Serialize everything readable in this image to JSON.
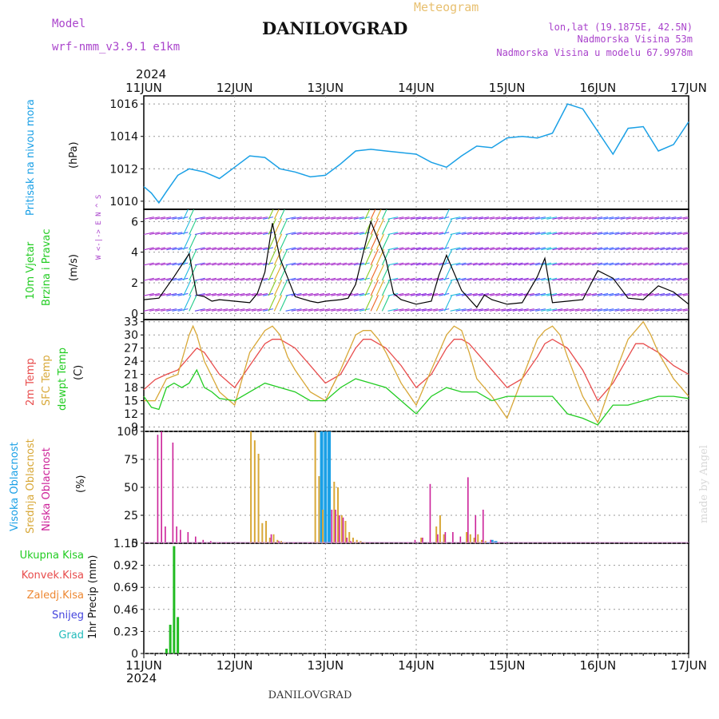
{
  "header": {
    "model_label": "Model",
    "model_name": "wrf-nmm_v3.9.1  e1km",
    "title": "DANILOVGRAD",
    "product": "Meteogram",
    "lonlat": "lon,lat (19.1875E, 42.5N)",
    "elevation": "Nadmorska Visina 53m",
    "model_elevation": "Nadmorska Visina u modelu 67.9978m",
    "footer": "DANILOVGRAD",
    "credit": "made by Angel"
  },
  "colors": {
    "pressure": "#1aa0e6",
    "wind_label": "#22cc22",
    "t2m": "#e84c4c",
    "sfc": "#d8a838",
    "dewpt": "#22cc22",
    "cloud_high": "#1aa0e6",
    "cloud_mid": "#d8a838",
    "cloud_low": "#cc2299",
    "precip": "#22bb22",
    "purple": "#aa44cc"
  },
  "time_axis": {
    "year": "2024",
    "ticks": [
      "11JUN",
      "12JUN",
      "13JUN",
      "14JUN",
      "15JUN",
      "16JUN",
      "17JUN"
    ]
  },
  "chart_data": [
    {
      "id": "pressure",
      "type": "line",
      "ylabel": "Pritisak na nivou mora",
      "unit": "(hPa)",
      "ylim": [
        1009.5,
        1016.5
      ],
      "yticks": [
        "1010",
        "1012",
        "1014",
        "1016"
      ],
      "series": [
        {
          "x": [
            0,
            2,
            4,
            6,
            9,
            12,
            16,
            20,
            24,
            28,
            32,
            36,
            40,
            44,
            48,
            52,
            56,
            60,
            64,
            68,
            72,
            76,
            80,
            84,
            88,
            92,
            96,
            100,
            104,
            108,
            112,
            116,
            120,
            124,
            128,
            132,
            136,
            140,
            144
          ],
          "values": [
            1010.9,
            1010.5,
            1009.9,
            1010.6,
            1011.6,
            1012.0,
            1011.8,
            1011.4,
            1012.1,
            1012.8,
            1012.7,
            1012.0,
            1011.8,
            1011.5,
            1011.6,
            1012.3,
            1013.1,
            1013.2,
            1013.1,
            1013.0,
            1012.9,
            1012.4,
            1012.1,
            1012.8,
            1013.4,
            1013.3,
            1013.9,
            1014.0,
            1013.9,
            1014.2,
            1016.0,
            1015.7,
            1014.3,
            1012.9,
            1014.5,
            1014.6,
            1013.1,
            1013.5,
            1014.9
          ]
        }
      ]
    },
    {
      "id": "wind",
      "type": "line",
      "ylabel": "10m Vjetar",
      "ylabel2": "Brzina i Pravac",
      "unit": "(m/s)",
      "compass": "W <-|-> E  N ^ S",
      "ylim": [
        -0.4,
        6.8
      ],
      "yticks": [
        "0",
        "2",
        "4",
        "6"
      ],
      "series": [
        {
          "x": [
            0,
            4,
            8,
            12,
            14,
            16,
            18,
            20,
            24,
            28,
            30,
            32,
            34,
            36,
            40,
            44,
            46,
            48,
            52,
            54,
            56,
            60,
            64,
            66,
            68,
            72,
            76,
            78,
            80,
            84,
            88,
            90,
            92,
            96,
            100,
            104,
            106,
            108,
            112,
            116,
            120,
            124,
            128,
            132,
            136,
            140,
            144
          ],
          "values": [
            0.9,
            1.0,
            2.4,
            3.9,
            1.2,
            1.1,
            0.8,
            0.9,
            0.8,
            0.7,
            1.3,
            2.7,
            5.9,
            3.6,
            1.1,
            0.8,
            0.7,
            0.8,
            0.9,
            1.0,
            1.9,
            6.0,
            3.5,
            1.3,
            0.9,
            0.6,
            0.8,
            2.5,
            3.8,
            1.5,
            0.4,
            1.2,
            0.9,
            0.6,
            0.7,
            2.4,
            3.6,
            0.7,
            0.8,
            0.9,
            2.8,
            2.3,
            1.0,
            0.9,
            1.8,
            1.4,
            0.6
          ]
        }
      ]
    },
    {
      "id": "temperature",
      "type": "line",
      "ylabels": [
        "2m Temp",
        "SFC Temp",
        "dewpt Temp"
      ],
      "unit": "(C)",
      "ylim": [
        8,
        33.5
      ],
      "yticks": [
        "9",
        "12",
        "15",
        "18",
        "21",
        "24",
        "27",
        "30",
        "33"
      ],
      "series": [
        {
          "name": "2m Temp",
          "x": [
            0,
            3,
            6,
            9,
            12,
            14,
            16,
            20,
            24,
            28,
            32,
            34,
            36,
            38,
            40,
            44,
            48,
            52,
            56,
            58,
            60,
            62,
            64,
            68,
            72,
            76,
            80,
            82,
            84,
            86,
            88,
            92,
            96,
            100,
            104,
            106,
            108,
            110,
            112,
            116,
            120,
            124,
            128,
            130,
            132,
            134,
            136,
            140,
            144
          ],
          "values": [
            17.5,
            19.8,
            21,
            22,
            25,
            27,
            26,
            21,
            18,
            23,
            28,
            29,
            29,
            28,
            27,
            23,
            19,
            21,
            27,
            29,
            29,
            28,
            27,
            23,
            18,
            21,
            27,
            29,
            29,
            28,
            26,
            22,
            18,
            20,
            25,
            28,
            29,
            28,
            27,
            22,
            15,
            19,
            25,
            28,
            28,
            27,
            26,
            23,
            21
          ]
        },
        {
          "name": "SFC Temp",
          "x": [
            0,
            3,
            6,
            9,
            12,
            13,
            14,
            16,
            20,
            24,
            28,
            32,
            34,
            35,
            36,
            38,
            40,
            44,
            48,
            52,
            56,
            58,
            60,
            62,
            64,
            68,
            72,
            76,
            80,
            82,
            84,
            86,
            88,
            92,
            96,
            100,
            104,
            106,
            108,
            110,
            112,
            116,
            120,
            124,
            128,
            130,
            132,
            134,
            136,
            140,
            144
          ],
          "values": [
            15,
            15,
            20,
            21,
            30,
            32,
            30,
            24,
            17,
            14,
            26,
            31,
            32,
            31,
            30,
            25,
            22,
            17,
            15,
            22,
            30,
            31,
            31,
            29,
            26,
            19,
            14,
            22,
            30,
            32,
            31,
            26,
            20,
            16,
            11,
            20,
            29,
            31,
            32,
            30,
            25,
            16,
            10,
            20,
            29,
            31,
            33,
            30,
            26,
            20,
            16
          ]
        },
        {
          "name": "dewpt Temp",
          "x": [
            0,
            2,
            4,
            6,
            8,
            10,
            12,
            14,
            16,
            18,
            20,
            24,
            28,
            32,
            36,
            40,
            44,
            48,
            52,
            56,
            60,
            64,
            68,
            72,
            76,
            80,
            84,
            88,
            92,
            96,
            100,
            104,
            108,
            112,
            116,
            120,
            124,
            128,
            132,
            136,
            140,
            144
          ],
          "values": [
            16,
            13.5,
            13,
            18,
            19,
            18,
            19,
            22,
            18,
            17,
            15.5,
            15,
            17,
            19,
            18,
            17,
            15,
            15,
            18,
            20,
            19,
            18,
            15,
            12,
            16,
            18,
            17,
            17,
            15,
            16,
            16,
            16,
            16,
            12,
            11,
            9.5,
            14,
            14,
            15,
            16,
            16,
            15.5
          ]
        }
      ]
    },
    {
      "id": "clouds",
      "type": "bar",
      "ylabels": [
        "Visoka Oblacnost",
        "Srednja Oblacnost",
        "Niska Oblacnost"
      ],
      "unit": "(%)",
      "ylim": [
        0,
        100
      ],
      "yticks": [
        "0",
        "25",
        "50",
        "75",
        "100"
      ],
      "series": [
        {
          "name": "Visoka Oblacnost",
          "x": [
            47,
            48,
            49,
            90,
            91,
            92,
            93
          ],
          "values": [
            100,
            100,
            100,
            1,
            1,
            3,
            2
          ]
        },
        {
          "name": "Srednja Oblacnost",
          "x": [
            28,
            29,
            30,
            31,
            32,
            33,
            34,
            35,
            36,
            37,
            45,
            46,
            47,
            50,
            51,
            52,
            53,
            54,
            55,
            56,
            57,
            58,
            73,
            77,
            78,
            79,
            85,
            86,
            87,
            88,
            89,
            90
          ],
          "values": [
            100,
            92,
            80,
            18,
            20,
            5,
            8,
            3,
            2,
            1,
            100,
            60,
            30,
            55,
            50,
            25,
            20,
            10,
            5,
            3,
            2,
            1,
            5,
            15,
            25,
            8,
            10,
            8,
            5,
            8,
            3,
            2
          ]
        },
        {
          "name": "Niska Oblacnost",
          "x": [
            4,
            5,
            6,
            8,
            9,
            10,
            12,
            14,
            16,
            18,
            20,
            22,
            34,
            36,
            40,
            44,
            48,
            50,
            51,
            52,
            53,
            54,
            55,
            60,
            70,
            72,
            74,
            76,
            78,
            80,
            82,
            84,
            86,
            88,
            90,
            92,
            94,
            96
          ],
          "values": [
            97,
            100,
            15,
            90,
            15,
            12,
            10,
            6,
            3,
            2,
            1,
            1,
            8,
            2,
            1,
            1,
            1,
            30,
            30,
            25,
            23,
            5,
            2,
            1,
            1,
            3,
            5,
            53,
            8,
            10,
            10,
            6,
            59,
            25,
            30,
            3,
            1,
            1
          ]
        }
      ]
    },
    {
      "id": "precip",
      "type": "bar",
      "ylabel": "1hr Precip (mm)",
      "legend": [
        "Ukupna Kisa",
        "Konvek.Kisa",
        "Zaledj.Kisa",
        "Snijeg",
        "Grad"
      ],
      "ylim": [
        0,
        1.15
      ],
      "yticks": [
        "0",
        "0.23",
        "0.46",
        "0.69",
        "0.92",
        "1.15"
      ],
      "series": [
        {
          "name": "Ukupna Kisa",
          "x": [
            6,
            7,
            8,
            9
          ],
          "values": [
            0.05,
            0.3,
            1.12,
            0.38
          ]
        },
        {
          "name": "Konvek.Kisa",
          "x": [],
          "values": []
        },
        {
          "name": "Zaledj.Kisa",
          "x": [],
          "values": []
        },
        {
          "name": "Snijeg",
          "x": [],
          "values": []
        },
        {
          "name": "Grad",
          "x": [],
          "values": []
        }
      ]
    }
  ]
}
